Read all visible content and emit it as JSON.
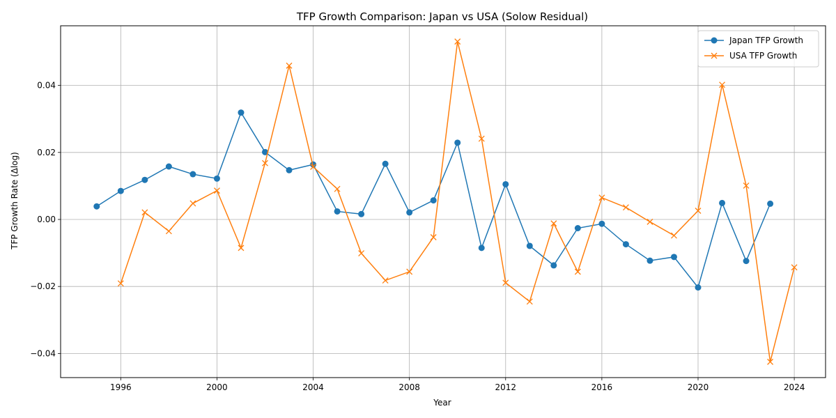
{
  "chart_data": {
    "type": "line",
    "title": "TFP Growth Comparison: Japan vs USA (Solow Residual)",
    "xlabel": "Year",
    "ylabel": "TFP Growth Rate (Δlog)",
    "xlim": [
      1993.5,
      2025.3
    ],
    "ylim": [
      -0.0472,
      0.0578
    ],
    "xticks": [
      1996,
      2000,
      2004,
      2008,
      2012,
      2016,
      2020,
      2024
    ],
    "xtick_labels": [
      "1996",
      "2000",
      "2004",
      "2008",
      "2012",
      "2016",
      "2020",
      "2024"
    ],
    "yticks": [
      -0.04,
      -0.02,
      0.0,
      0.02,
      0.04
    ],
    "ytick_labels": [
      "−0.04",
      "−0.02",
      "0.00",
      "0.02",
      "0.04"
    ],
    "grid": true,
    "legend_position": "top-right",
    "series": [
      {
        "name": "Japan TFP Growth",
        "color": "#1f77b4",
        "marker": "circle",
        "x": [
          1995,
          1996,
          1997,
          1998,
          1999,
          2000,
          2001,
          2002,
          2003,
          2004,
          2005,
          2006,
          2007,
          2008,
          2009,
          2010,
          2011,
          2012,
          2013,
          2014,
          2015,
          2016,
          2017,
          2018,
          2019,
          2020,
          2021,
          2022,
          2023
        ],
        "y": [
          0.0039,
          0.0085,
          0.0118,
          0.0158,
          0.0135,
          0.0122,
          0.0319,
          0.0201,
          0.0147,
          0.0164,
          0.0024,
          0.0016,
          0.0166,
          0.0021,
          0.0057,
          0.0229,
          -0.0085,
          0.0105,
          -0.0079,
          -0.0137,
          -0.0026,
          -0.0013,
          -0.0074,
          -0.0123,
          -0.0112,
          -0.0203,
          0.0049,
          -0.0124,
          0.0047
        ]
      },
      {
        "name": "USA TFP Growth",
        "color": "#ff7f0e",
        "marker": "x",
        "x": [
          1996,
          1997,
          1998,
          1999,
          2000,
          2001,
          2002,
          2003,
          2004,
          2005,
          2006,
          2007,
          2008,
          2009,
          2010,
          2011,
          2012,
          2013,
          2014,
          2015,
          2016,
          2017,
          2018,
          2019,
          2020,
          2021,
          2022,
          2023,
          2024
        ],
        "y": [
          -0.0191,
          0.0021,
          -0.0035,
          0.0048,
          0.0086,
          -0.0085,
          0.0168,
          0.0459,
          0.0157,
          0.0091,
          -0.0101,
          -0.0182,
          -0.0156,
          -0.0053,
          0.0531,
          0.0241,
          -0.0189,
          -0.0245,
          -0.0012,
          -0.0156,
          0.0065,
          0.0036,
          -0.0007,
          -0.0048,
          0.0026,
          0.0402,
          0.0101,
          -0.0425,
          -0.0143
        ]
      }
    ]
  }
}
